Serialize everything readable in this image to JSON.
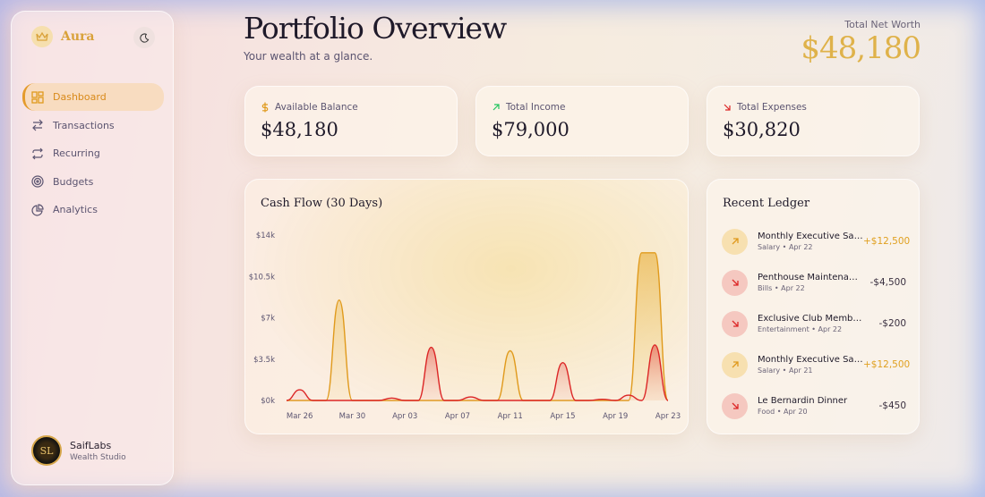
{
  "sidebar": {
    "brand": "Aura",
    "nav": [
      "Dashboard",
      "Transactions",
      "Recurring",
      "Budgets",
      "Analytics"
    ],
    "user": {
      "name": "SaifLabs",
      "subtitle": "Wealth Studio"
    }
  },
  "header": {
    "title": "Portfolio Overview",
    "subtitle": "Your wealth at a glance.",
    "net_worth_label": "Total Net Worth",
    "net_worth": "$48,180"
  },
  "stats": [
    {
      "label": "Available Balance",
      "value": "$48,180"
    },
    {
      "label": "Total Income",
      "value": "$79,000"
    },
    {
      "label": "Total Expenses",
      "value": "$30,820"
    }
  ],
  "cash_flow": {
    "type": "line",
    "title": "Cash Flow (30 Days)",
    "categories": [
      null,
      "Mar 26",
      null,
      null,
      null,
      "Mar 30",
      null,
      null,
      null,
      "Apr 03",
      null,
      null,
      null,
      "Apr 07",
      null,
      null,
      null,
      "Apr 11",
      null,
      null,
      null,
      "Apr 15",
      null,
      null,
      null,
      "Apr 19",
      null,
      null,
      null,
      "Apr 23"
    ],
    "series": [
      {
        "color": "#e09a1c",
        "values": [
          0,
          0,
          0,
          0,
          8500,
          0,
          0,
          0,
          0,
          0,
          0,
          0,
          0,
          0,
          0,
          0,
          0,
          4200,
          0,
          0,
          0,
          0,
          0,
          0,
          0,
          0,
          0,
          12500,
          12500,
          0
        ]
      },
      {
        "color": "#dc2626",
        "values": [
          0,
          900,
          0,
          0,
          0,
          0,
          0,
          0,
          200,
          0,
          0,
          4500,
          0,
          0,
          300,
          0,
          0,
          0,
          0,
          0,
          0,
          3200,
          0,
          0,
          100,
          0,
          450,
          0,
          4700,
          0
        ]
      }
    ],
    "ylim": [
      0,
      14000
    ],
    "yticks": [
      {
        "value": 0,
        "label": "$0k"
      },
      {
        "value": 3500,
        "label": "$3.5k"
      },
      {
        "value": 7000,
        "label": "$7k"
      },
      {
        "value": 10500,
        "label": "$10.5k"
      },
      {
        "value": 14000,
        "label": "$14k"
      }
    ]
  },
  "ledger": {
    "title": "Recent Ledger",
    "items": [
      {
        "name": "Monthly Executive Salary",
        "category": "Salary",
        "date": "Apr 22",
        "amount": "+$12,500",
        "kind": "in"
      },
      {
        "name": "Penthouse Maintenance",
        "category": "Bills",
        "date": "Apr 22",
        "amount": "-$4,500",
        "kind": "out"
      },
      {
        "name": "Exclusive Club Membership",
        "category": "Entertainment",
        "date": "Apr 22",
        "amount": "-$200",
        "kind": "out"
      },
      {
        "name": "Monthly Executive Salary",
        "category": "Salary",
        "date": "Apr 21",
        "amount": "+$12,500",
        "kind": "in"
      },
      {
        "name": "Le Bernardin Dinner",
        "category": "Food",
        "date": "Apr 20",
        "amount": "-$450",
        "kind": "out"
      }
    ]
  }
}
